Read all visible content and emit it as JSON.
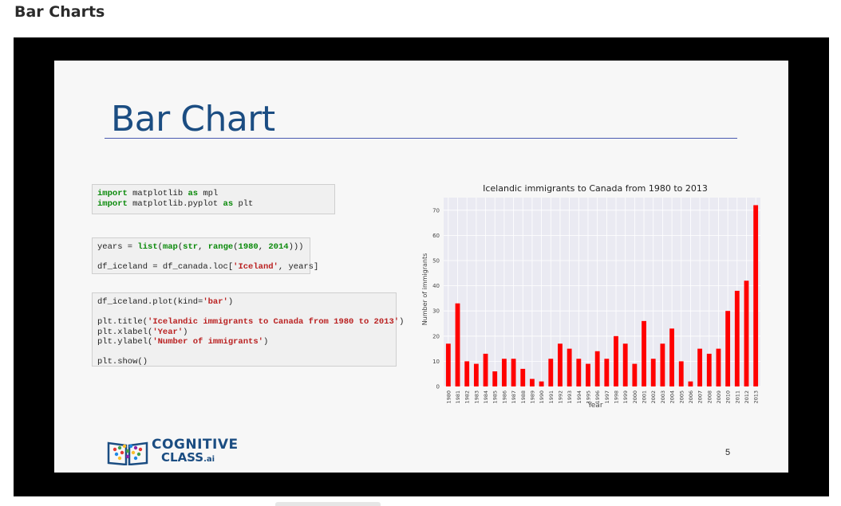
{
  "page": {
    "heading": "Bar Charts"
  },
  "slide": {
    "title": "Bar Chart",
    "page_number": "5",
    "logo": {
      "line1": "COGNITIVE",
      "line2": "CLASS",
      "suffix": ".ai"
    },
    "code_blocks": [
      [
        [
          {
            "t": "import",
            "c": "kw"
          },
          {
            "t": " matplotlib "
          },
          {
            "t": "as",
            "c": "kw"
          },
          {
            "t": " mpl"
          }
        ],
        [
          {
            "t": "import",
            "c": "kw"
          },
          {
            "t": " matplotlib.pyplot "
          },
          {
            "t": "as",
            "c": "kw"
          },
          {
            "t": " plt"
          }
        ]
      ],
      [
        [
          {
            "t": "years = "
          },
          {
            "t": "list",
            "c": "kw"
          },
          {
            "t": "("
          },
          {
            "t": "map",
            "c": "kw"
          },
          {
            "t": "("
          },
          {
            "t": "str",
            "c": "kw"
          },
          {
            "t": ", "
          },
          {
            "t": "range",
            "c": "kw"
          },
          {
            "t": "("
          },
          {
            "t": "1980",
            "c": "num"
          },
          {
            "t": ", "
          },
          {
            "t": "2014",
            "c": "num"
          },
          {
            "t": ")))"
          }
        ],
        [],
        [
          {
            "t": "df_iceland = df_canada.loc["
          },
          {
            "t": "'Iceland'",
            "c": "str"
          },
          {
            "t": ", years]"
          }
        ]
      ],
      [
        [
          {
            "t": "df_iceland.plot(kind="
          },
          {
            "t": "'bar'",
            "c": "str"
          },
          {
            "t": ")"
          }
        ],
        [],
        [
          {
            "t": "plt.title("
          },
          {
            "t": "'Icelandic immigrants to Canada from 1980 to 2013'",
            "c": "str"
          },
          {
            "t": ")"
          }
        ],
        [
          {
            "t": "plt.xlabel("
          },
          {
            "t": "'Year'",
            "c": "str"
          },
          {
            "t": ")"
          }
        ],
        [
          {
            "t": "plt.ylabel("
          },
          {
            "t": "'Number of immigrants'",
            "c": "str"
          },
          {
            "t": ")"
          }
        ],
        [],
        [
          {
            "t": "plt.show()"
          }
        ]
      ]
    ]
  },
  "chart_data": {
    "type": "bar",
    "title": "Icelandic immigrants to Canada from 1980 to 2013",
    "xlabel": "Year",
    "ylabel": "Number of immigrants",
    "ylim": [
      0,
      75
    ],
    "yticks": [
      0,
      10,
      20,
      30,
      40,
      50,
      60,
      70
    ],
    "grid": true,
    "bar_color": "#ff0000",
    "background": "#eaeaf2",
    "categories": [
      "1980",
      "1981",
      "1982",
      "1983",
      "1984",
      "1985",
      "1986",
      "1987",
      "1988",
      "1989",
      "1990",
      "1991",
      "1992",
      "1993",
      "1994",
      "1995",
      "1996",
      "1997",
      "1998",
      "1999",
      "2000",
      "2001",
      "2002",
      "2003",
      "2004",
      "2005",
      "2006",
      "2007",
      "2008",
      "2009",
      "2010",
      "2011",
      "2012",
      "2013"
    ],
    "values": [
      17,
      33,
      10,
      9,
      13,
      6,
      11,
      11,
      7,
      3,
      2,
      11,
      17,
      15,
      11,
      9,
      14,
      11,
      20,
      17,
      9,
      26,
      11,
      17,
      23,
      10,
      2,
      15,
      13,
      15,
      30,
      38,
      42,
      72
    ]
  }
}
